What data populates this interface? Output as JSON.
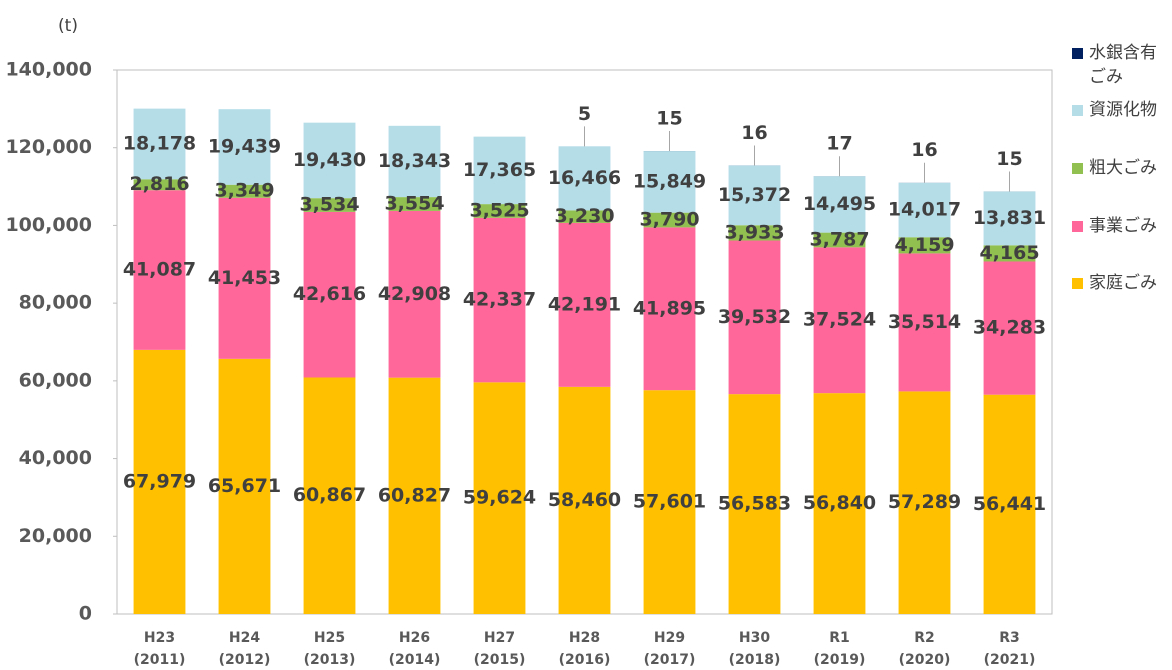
{
  "chart_data": {
    "type": "stacked_bar",
    "y_label": "(t)",
    "categories": [
      "H23\n(2011)",
      "H24\n(2012)",
      "H25\n(2013)",
      "H26\n(2014)",
      "H27\n(2015)",
      "H28\n(2016)",
      "H29\n(2017)",
      "H30\n(2018)",
      "R1\n(2019)",
      "R2\n(2020)",
      "R3\n(2021)"
    ],
    "ylim": [
      0,
      140000
    ],
    "yticks": [
      0,
      {
        "value": 20000,
        "label": "20,000"
      },
      {
        "value": 40000,
        "label": "40,000"
      },
      {
        "value": 60000,
        "label": "60,000"
      },
      {
        "value": 80000,
        "label": "80,000"
      },
      {
        "value": 100000,
        "label": "100,000"
      },
      {
        "value": 120000,
        "label": "120,000"
      },
      {
        "value": 140000,
        "label": "140,000"
      }
    ],
    "legend": "right",
    "series": [
      {
        "name": "家庭ごみ",
        "color": "#FFC000",
        "values": [
          67979,
          65671,
          60867,
          60827,
          59624,
          58460,
          57601,
          56583,
          56840,
          57289,
          56441
        ],
        "value_labels": [
          "67,979",
          "65,671",
          "60,867",
          "60,827",
          "59,624",
          "58,460",
          "57,601",
          "56,583",
          "56,840",
          "57,289",
          "56,441"
        ]
      },
      {
        "name": "事業ごみ",
        "color": "#FF6699",
        "values": [
          41087,
          41453,
          42616,
          42908,
          42337,
          42191,
          41895,
          39532,
          37524,
          35514,
          34283
        ],
        "value_labels": [
          "41,087",
          "41,453",
          "42,616",
          "42,908",
          "42,337",
          "42,191",
          "41,895",
          "39,532",
          "37,524",
          "35,514",
          "34,283"
        ]
      },
      {
        "name": "粗大ごみ",
        "color": "#92C050",
        "values": [
          2816,
          3349,
          3534,
          3554,
          3525,
          3230,
          3790,
          3933,
          3787,
          4159,
          4165
        ],
        "value_labels": [
          "2,816",
          "3,349",
          "3,534",
          "3,554",
          "3,525",
          "3,230",
          "3,790",
          "3,933",
          "3,787",
          "4,159",
          "4,165"
        ]
      },
      {
        "name": "資源化物",
        "color": "#B4DDE8",
        "values": [
          18178,
          19439,
          19430,
          18343,
          17365,
          16466,
          15849,
          15372,
          14495,
          14017,
          13831
        ],
        "value_labels": [
          "18,178",
          "19,439",
          "19,430",
          "18,343",
          "17,365",
          "16,466",
          "15,849",
          "15,372",
          "14,495",
          "14,017",
          "13,831"
        ]
      },
      {
        "name": "水銀含有ごみ",
        "color": "#002060",
        "values": [
          null,
          null,
          null,
          null,
          null,
          5,
          15,
          16,
          17,
          16,
          15
        ]
      }
    ]
  }
}
